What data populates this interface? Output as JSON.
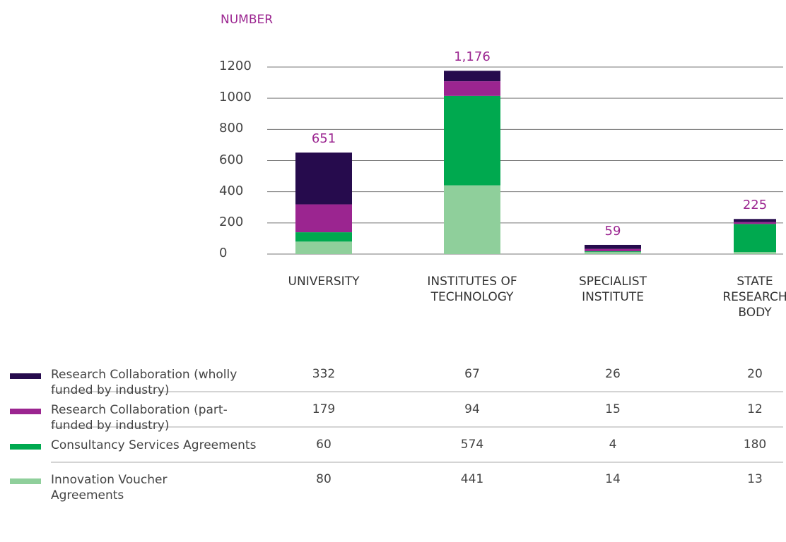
{
  "chart_data": {
    "type": "stacked_bar",
    "y_label": "NUMBER",
    "categories": [
      "UNIVERSITY",
      "INSTITUTES OF TECHNOLOGY",
      "SPECIALIST INSTITUTE",
      "STATE RESEARCH BODY"
    ],
    "series": [
      {
        "name": "Research Collaboration (wholly funded by industry)",
        "color": "#260b4d",
        "values": [
          332,
          67,
          26,
          20
        ]
      },
      {
        "name": "Research Collaboration (part-funded by industry)",
        "color": "#9b2590",
        "values": [
          179,
          94,
          15,
          12
        ]
      },
      {
        "name": "Consultancy Services Agreements",
        "color": "#00a94f",
        "values": [
          60,
          574,
          4,
          180
        ]
      },
      {
        "name": "Innovation Voucher Agreements",
        "color": "#8fcf9b",
        "values": [
          80,
          441,
          14,
          13
        ]
      }
    ],
    "totals": [
      651,
      1176,
      59,
      225
    ],
    "total_labels": [
      "651",
      "1,176",
      "59",
      "225"
    ],
    "total_color": "#9b2590",
    "ylim": [
      0,
      1200
    ],
    "yticks": [
      0,
      200,
      400,
      600,
      800,
      1000,
      1200
    ],
    "grid": true
  }
}
